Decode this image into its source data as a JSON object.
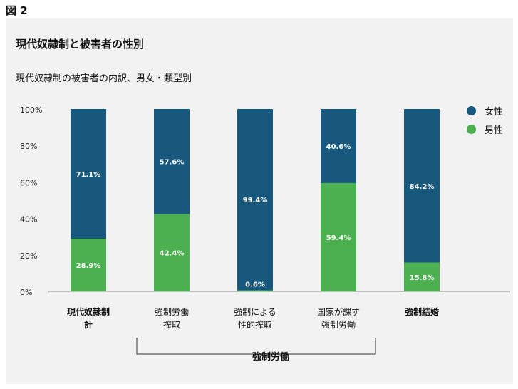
{
  "figure_label": "図 2",
  "chart_data": {
    "type": "bar",
    "stacked": true,
    "title": "現代奴隷制と被害者の性別",
    "subtitle": "現代奴隷制の被害者の内訳、男女・類型別",
    "categories": [
      [
        "現代奴隷制",
        "計"
      ],
      [
        "強制労働",
        "搾取"
      ],
      [
        "強制による",
        "性的搾取"
      ],
      [
        "国家が課す",
        "強制労働"
      ],
      [
        "強制結婚"
      ]
    ],
    "category_bold": [
      true,
      false,
      false,
      false,
      true
    ],
    "series": [
      {
        "name": "男性",
        "color": "#4caf50",
        "values": [
          28.9,
          42.4,
          0.6,
          59.4,
          15.8
        ],
        "labels": [
          "28.9%",
          "42.4%",
          "0.6%",
          "59.4%",
          "15.8%"
        ]
      },
      {
        "name": "女性",
        "color": "#17587c",
        "values": [
          71.1,
          57.6,
          99.4,
          40.6,
          84.2
        ],
        "labels": [
          "71.1%",
          "57.6%",
          "99.4%",
          "40.6%",
          "84.2%"
        ]
      }
    ],
    "ylim": [
      0,
      100
    ],
    "yticks": [
      "0%",
      "20%",
      "40%",
      "60%",
      "80%",
      "100%"
    ],
    "legend": [
      {
        "name": "女性",
        "color": "#17587c"
      },
      {
        "name": "男性",
        "color": "#4caf50"
      }
    ],
    "legend_position": "top-right",
    "group_bracket_label": "強制労働",
    "grid": false
  }
}
